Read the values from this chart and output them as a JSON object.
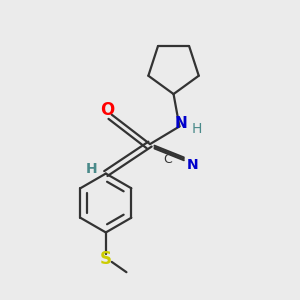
{
  "bg_color": "#ebebeb",
  "bond_color": "#333333",
  "O_color": "#ff0000",
  "N_color": "#0000cc",
  "S_color": "#cccc00",
  "H_color": "#4a8a8a",
  "C_color": "#333333",
  "line_width": 1.6,
  "font_size": 10,
  "figsize": [
    3.0,
    3.0
  ],
  "dpi": 100,
  "xlim": [
    0,
    10
  ],
  "ylim": [
    0,
    10
  ]
}
